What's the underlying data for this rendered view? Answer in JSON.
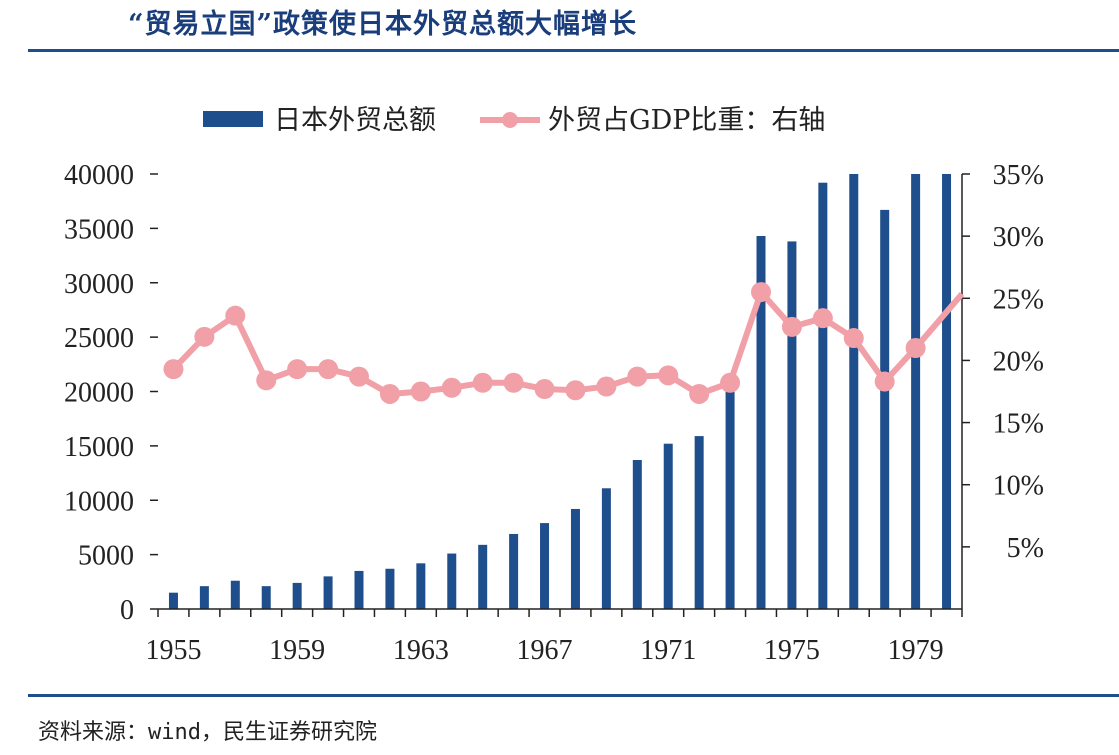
{
  "title": "“贸易立国”政策使日本外贸总额大幅增长",
  "source": "资料来源：wind，民生证券研究院",
  "colors": {
    "bar": "#1f4e8c",
    "line": "#f2a0a8",
    "rule": "#1f4e8c",
    "title": "#1a3d7c"
  },
  "chart_data": {
    "type": "bar",
    "title": "",
    "legend": [
      "日本外贸总额",
      "外贸占GDP比重：右轴"
    ],
    "legend_position": "top",
    "grid": false,
    "x": [
      "1955",
      "1956",
      "1957",
      "1958",
      "1959",
      "1960",
      "1961",
      "1962",
      "1963",
      "1964",
      "1965",
      "1966",
      "1967",
      "1968",
      "1969",
      "1970",
      "1971",
      "1972",
      "1973",
      "1974",
      "1975",
      "1976",
      "1977",
      "1978",
      "1979",
      "1980"
    ],
    "xticks": [
      "1955",
      "1959",
      "1963",
      "1967",
      "1971",
      "1975",
      "1979"
    ],
    "series": [
      {
        "name": "日本外贸总额",
        "axis": "left",
        "type": "bar",
        "values": [
          1500,
          2100,
          2600,
          2100,
          2400,
          3000,
          3500,
          3700,
          4200,
          5100,
          5900,
          6900,
          7900,
          9200,
          11100,
          13700,
          15200,
          15900,
          21100,
          34300,
          33800,
          39200,
          40000,
          36700,
          40000,
          40000
        ]
      },
      {
        "name": "外贸占GDP比重：右轴",
        "axis": "right",
        "type": "line",
        "values": [
          19.3,
          21.9,
          23.6,
          18.4,
          19.3,
          19.3,
          18.7,
          17.3,
          17.5,
          17.8,
          18.2,
          18.2,
          17.7,
          17.6,
          17.9,
          18.7,
          18.8,
          17.3,
          18.2,
          25.5,
          22.7,
          23.4,
          21.8,
          18.3,
          21.0,
          23.9
        ]
      }
    ],
    "yticks_left": [
      "0",
      "5000",
      "10000",
      "15000",
      "20000",
      "25000",
      "30000",
      "35000",
      "40000"
    ],
    "ylim_left": [
      0,
      40000
    ],
    "yticks_right": [
      "5%",
      "10%",
      "15%",
      "20%",
      "25%",
      "30%",
      "35%"
    ],
    "ylim_right": [
      0,
      35
    ]
  }
}
